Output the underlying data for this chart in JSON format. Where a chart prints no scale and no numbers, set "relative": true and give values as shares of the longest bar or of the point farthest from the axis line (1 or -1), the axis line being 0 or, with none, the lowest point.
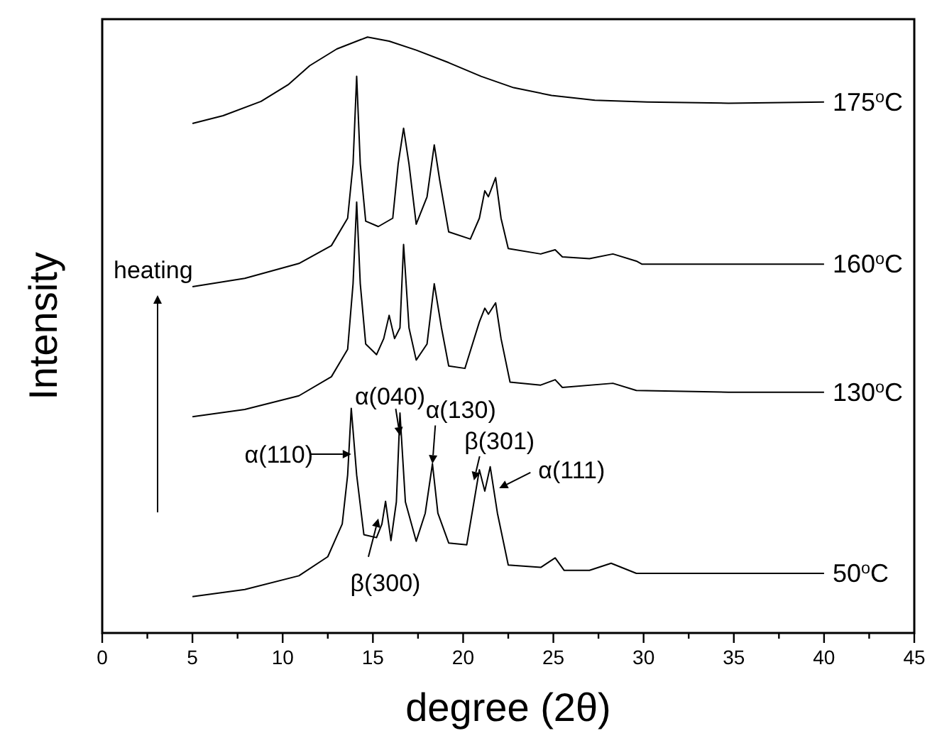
{
  "chart_data": {
    "type": "line",
    "relative": true,
    "xlabel": "degree (2θ)",
    "ylabel": "Intensity",
    "xlim": [
      0,
      45
    ],
    "xticks": [
      0,
      {
        "value": 2.5,
        "label": null
      },
      5,
      {
        "value": 7.5,
        "label": null
      },
      10,
      {
        "value": 12.5,
        "label": null
      },
      15,
      {
        "value": 17.5,
        "label": null
      },
      20,
      {
        "value": 22.5,
        "label": null
      },
      25,
      {
        "value": 27.5,
        "label": null
      },
      30,
      {
        "value": 32.5,
        "label": null
      },
      35,
      {
        "value": 37.5,
        "label": null
      },
      40,
      {
        "value": 42.5,
        "label": null
      },
      45
    ],
    "marker": "none",
    "line_style": "solid",
    "series": [
      {
        "name": "50$^{o}$C",
        "color": "#000000",
        "x": [
          5,
          7.9,
          10.9,
          12.5,
          13.3,
          13.6,
          13.8,
          14.1,
          14.5,
          15.2,
          15.5,
          15.7,
          16.0,
          16.3,
          16.5,
          16.8,
          17.4,
          17.9,
          18.3,
          18.6,
          19.2,
          20.2,
          20.6,
          20.9,
          21.2,
          21.5,
          21.9,
          22.5,
          24.3,
          25.1,
          25.6,
          27.0,
          28.2,
          29.6,
          34.7,
          40
        ],
        "values": [
          0.061,
          0.073,
          0.096,
          0.128,
          0.183,
          0.265,
          0.377,
          0.265,
          0.165,
          0.16,
          0.183,
          0.221,
          0.155,
          0.22,
          0.369,
          0.22,
          0.154,
          0.201,
          0.284,
          0.201,
          0.151,
          0.148,
          0.22,
          0.274,
          0.238,
          0.279,
          0.201,
          0.114,
          0.11,
          0.126,
          0.105,
          0.105,
          0.117,
          0.1,
          0.1,
          0.1
        ]
      },
      {
        "name": "130$^{o}$C",
        "color": "#000000",
        "x": [
          5,
          7.9,
          10.9,
          12.7,
          13.6,
          13.9,
          14.1,
          14.3,
          14.6,
          15.2,
          15.6,
          15.9,
          16.2,
          16.5,
          16.7,
          17.0,
          17.4,
          18.0,
          18.4,
          18.8,
          19.2,
          20.1,
          20.9,
          21.2,
          21.4,
          21.8,
          22.1,
          22.6,
          24.3,
          25.1,
          25.5,
          28.3,
          29.6,
          34.7,
          40
        ],
        "values": [
          0.363,
          0.375,
          0.398,
          0.43,
          0.476,
          0.586,
          0.723,
          0.586,
          0.485,
          0.467,
          0.494,
          0.533,
          0.494,
          0.512,
          0.652,
          0.512,
          0.458,
          0.485,
          0.586,
          0.512,
          0.448,
          0.444,
          0.522,
          0.545,
          0.535,
          0.554,
          0.494,
          0.421,
          0.416,
          0.425,
          0.412,
          0.419,
          0.407,
          0.404,
          0.404
        ]
      },
      {
        "name": "160$^{o}$C",
        "color": "#000000",
        "x": [
          5,
          7.9,
          10.9,
          12.7,
          13.6,
          13.9,
          14.1,
          14.3,
          14.6,
          15.3,
          16.1,
          16.4,
          16.7,
          17.0,
          17.4,
          18.0,
          18.4,
          18.7,
          19.2,
          20.4,
          20.9,
          21.2,
          21.4,
          21.8,
          22.1,
          22.5,
          24.3,
          25.1,
          25.5,
          27.0,
          28.3,
          29.6,
          29.9,
          34.7,
          40
        ],
        "values": [
          0.581,
          0.595,
          0.62,
          0.65,
          0.696,
          0.787,
          0.934,
          0.787,
          0.691,
          0.682,
          0.696,
          0.787,
          0.847,
          0.787,
          0.686,
          0.732,
          0.819,
          0.76,
          0.673,
          0.661,
          0.696,
          0.742,
          0.732,
          0.764,
          0.696,
          0.645,
          0.636,
          0.643,
          0.631,
          0.628,
          0.636,
          0.624,
          0.619,
          0.619,
          0.619
        ]
      },
      {
        "name": "175$^{o}$C",
        "color": "#000000",
        "x": [
          5,
          6.7,
          8.8,
          10.3,
          11.5,
          13.0,
          14.7,
          15.9,
          17.4,
          19.2,
          21.0,
          22.8,
          24.9,
          27.3,
          30.2,
          34.7,
          40
        ],
        "values": [
          0.855,
          0.868,
          0.892,
          0.92,
          0.952,
          0.98,
          1.0,
          0.993,
          0.978,
          0.957,
          0.934,
          0.915,
          0.902,
          0.894,
          0.891,
          0.889,
          0.891
        ]
      }
    ],
    "annotations": [
      {
        "text": "α(110)",
        "x": 13.8,
        "y": 0.3
      },
      {
        "text": "α(040)",
        "x": 16.5,
        "y": 0.331
      },
      {
        "text": "α(130)",
        "x": 18.3,
        "y": 0.284
      },
      {
        "text": "β(301)",
        "x": 20.6,
        "y": 0.256
      },
      {
        "text": "α(111)",
        "x": 22.0,
        "y": 0.243
      },
      {
        "text": "β(300)",
        "x": 15.3,
        "y": 0.192
      },
      "heating"
    ]
  }
}
